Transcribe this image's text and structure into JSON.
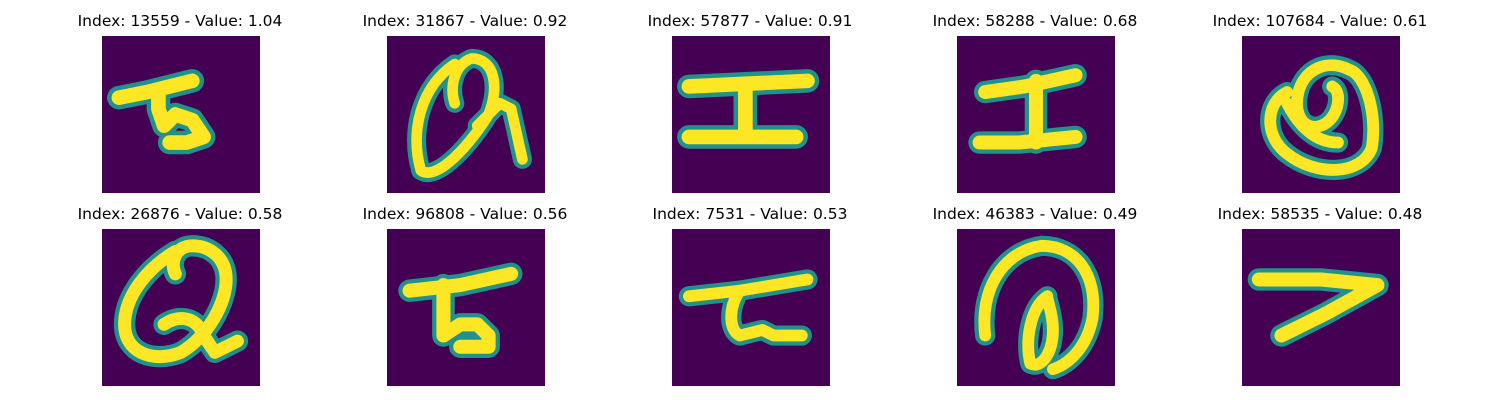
{
  "colors": {
    "background": "#440154",
    "stroke_core": "#fde725",
    "stroke_edge": "#21918c"
  },
  "panels": [
    {
      "title": "Index: 13559 - Value: 1.04",
      "index": 13559,
      "value": 1.04
    },
    {
      "title": "Index: 31867 - Value: 0.92",
      "index": 31867,
      "value": 0.92
    },
    {
      "title": "Index: 57877 - Value: 0.91",
      "index": 57877,
      "value": 0.91
    },
    {
      "title": "Index: 58288 - Value: 0.68",
      "index": 58288,
      "value": 0.68
    },
    {
      "title": "Index: 107684 - Value: 0.61",
      "index": 107684,
      "value": 0.61
    },
    {
      "title": "Index: 26876 - Value: 0.58",
      "index": 26876,
      "value": 0.58
    },
    {
      "title": "Index: 96808 - Value: 0.56",
      "index": 96808,
      "value": 0.56
    },
    {
      "title": "Index: 7531 - Value: 0.53",
      "index": 7531,
      "value": 0.53
    },
    {
      "title": "Index: 46383 - Value: 0.49",
      "index": 46383,
      "value": 0.49
    },
    {
      "title": "Index: 58535 - Value: 0.48",
      "index": 58535,
      "value": 0.48
    }
  ]
}
